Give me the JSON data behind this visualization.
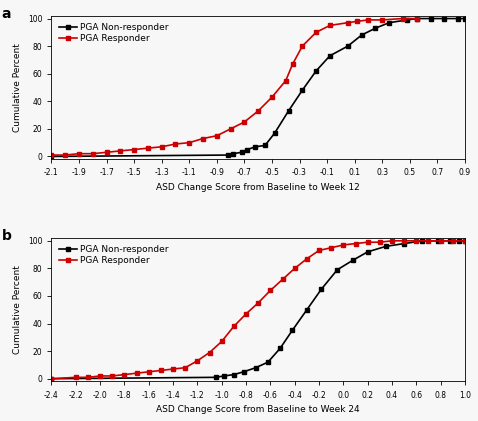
{
  "panel_a": {
    "xlabel": "ASD Change Score from Baseline to Week 12",
    "ylabel": "Cumulative Percent",
    "xlim": [
      -2.1,
      0.9
    ],
    "ylim": [
      -2,
      102
    ],
    "xticks": [
      -2.1,
      -1.9,
      -1.7,
      -1.5,
      -1.3,
      -1.1,
      -0.9,
      -0.7,
      -0.5,
      -0.3,
      -0.1,
      0.1,
      0.3,
      0.5,
      0.7,
      0.9
    ],
    "yticks": [
      0,
      20,
      40,
      60,
      80,
      100
    ],
    "non_responder_x": [
      -2.1,
      -0.82,
      -0.78,
      -0.72,
      -0.68,
      -0.62,
      -0.55,
      -0.48,
      -0.38,
      -0.28,
      -0.18,
      -0.08,
      0.05,
      0.15,
      0.25,
      0.35,
      0.48,
      0.55,
      0.65,
      0.75,
      0.85,
      0.9
    ],
    "non_responder_y": [
      0,
      1,
      2,
      3,
      5,
      7,
      8,
      17,
      33,
      48,
      62,
      73,
      80,
      88,
      93,
      97,
      99,
      100,
      100,
      100,
      100,
      100
    ],
    "responder_x": [
      -2.1,
      -2.0,
      -1.9,
      -1.8,
      -1.7,
      -1.6,
      -1.5,
      -1.4,
      -1.3,
      -1.2,
      -1.1,
      -1.0,
      -0.9,
      -0.8,
      -0.7,
      -0.6,
      -0.5,
      -0.4,
      -0.35,
      -0.28,
      -0.18,
      -0.08,
      0.05,
      0.12,
      0.2,
      0.3,
      0.45,
      0.55
    ],
    "responder_y": [
      1,
      1,
      2,
      2,
      3,
      4,
      5,
      6,
      7,
      9,
      10,
      13,
      15,
      20,
      25,
      33,
      43,
      55,
      67,
      80,
      90,
      95,
      97,
      98,
      99,
      99,
      100,
      100
    ]
  },
  "panel_b": {
    "xlabel": "ASD Change Score from Baseline to Week 24",
    "ylabel": "Cumulative Percent",
    "xlim": [
      -2.4,
      1.0
    ],
    "ylim": [
      -2,
      102
    ],
    "xticks": [
      -2.4,
      -2.2,
      -2.0,
      -1.8,
      -1.6,
      -1.4,
      -1.2,
      -1.0,
      -0.8,
      -0.6,
      -0.4,
      -0.2,
      0.0,
      0.2,
      0.4,
      0.6,
      0.8,
      1.0
    ],
    "yticks": [
      0,
      20,
      40,
      60,
      80,
      100
    ],
    "non_responder_x": [
      -2.4,
      -1.05,
      -0.98,
      -0.9,
      -0.82,
      -0.72,
      -0.62,
      -0.52,
      -0.42,
      -0.3,
      -0.18,
      -0.05,
      0.08,
      0.2,
      0.35,
      0.5,
      0.65,
      0.78,
      0.88,
      0.95,
      1.0
    ],
    "non_responder_y": [
      0,
      1,
      2,
      3,
      5,
      8,
      12,
      22,
      35,
      50,
      65,
      79,
      86,
      92,
      96,
      98,
      100,
      100,
      100,
      100,
      100
    ],
    "responder_x": [
      -2.4,
      -2.2,
      -2.1,
      -2.0,
      -1.9,
      -1.8,
      -1.7,
      -1.6,
      -1.5,
      -1.4,
      -1.3,
      -1.2,
      -1.1,
      -1.0,
      -0.9,
      -0.8,
      -0.7,
      -0.6,
      -0.5,
      -0.4,
      -0.3,
      -0.2,
      -0.1,
      0.0,
      0.1,
      0.2,
      0.3,
      0.4,
      0.5,
      0.6,
      0.7,
      0.8,
      0.9,
      1.0
    ],
    "responder_y": [
      0,
      1,
      1,
      2,
      2,
      3,
      4,
      5,
      6,
      7,
      8,
      13,
      19,
      27,
      38,
      47,
      55,
      64,
      72,
      80,
      87,
      93,
      95,
      97,
      98,
      99,
      99,
      100,
      100,
      100,
      100,
      100,
      100,
      100
    ]
  },
  "non_responder_color": "#000000",
  "responder_color": "#cc0000",
  "marker": "s",
  "markersize": 3.5,
  "linewidth": 1.2,
  "legend_fontsize": 6.5,
  "axis_fontsize": 6.5,
  "tick_fontsize": 5.5,
  "panel_label_fontsize": 10,
  "bg_color": "#f7f7f7"
}
